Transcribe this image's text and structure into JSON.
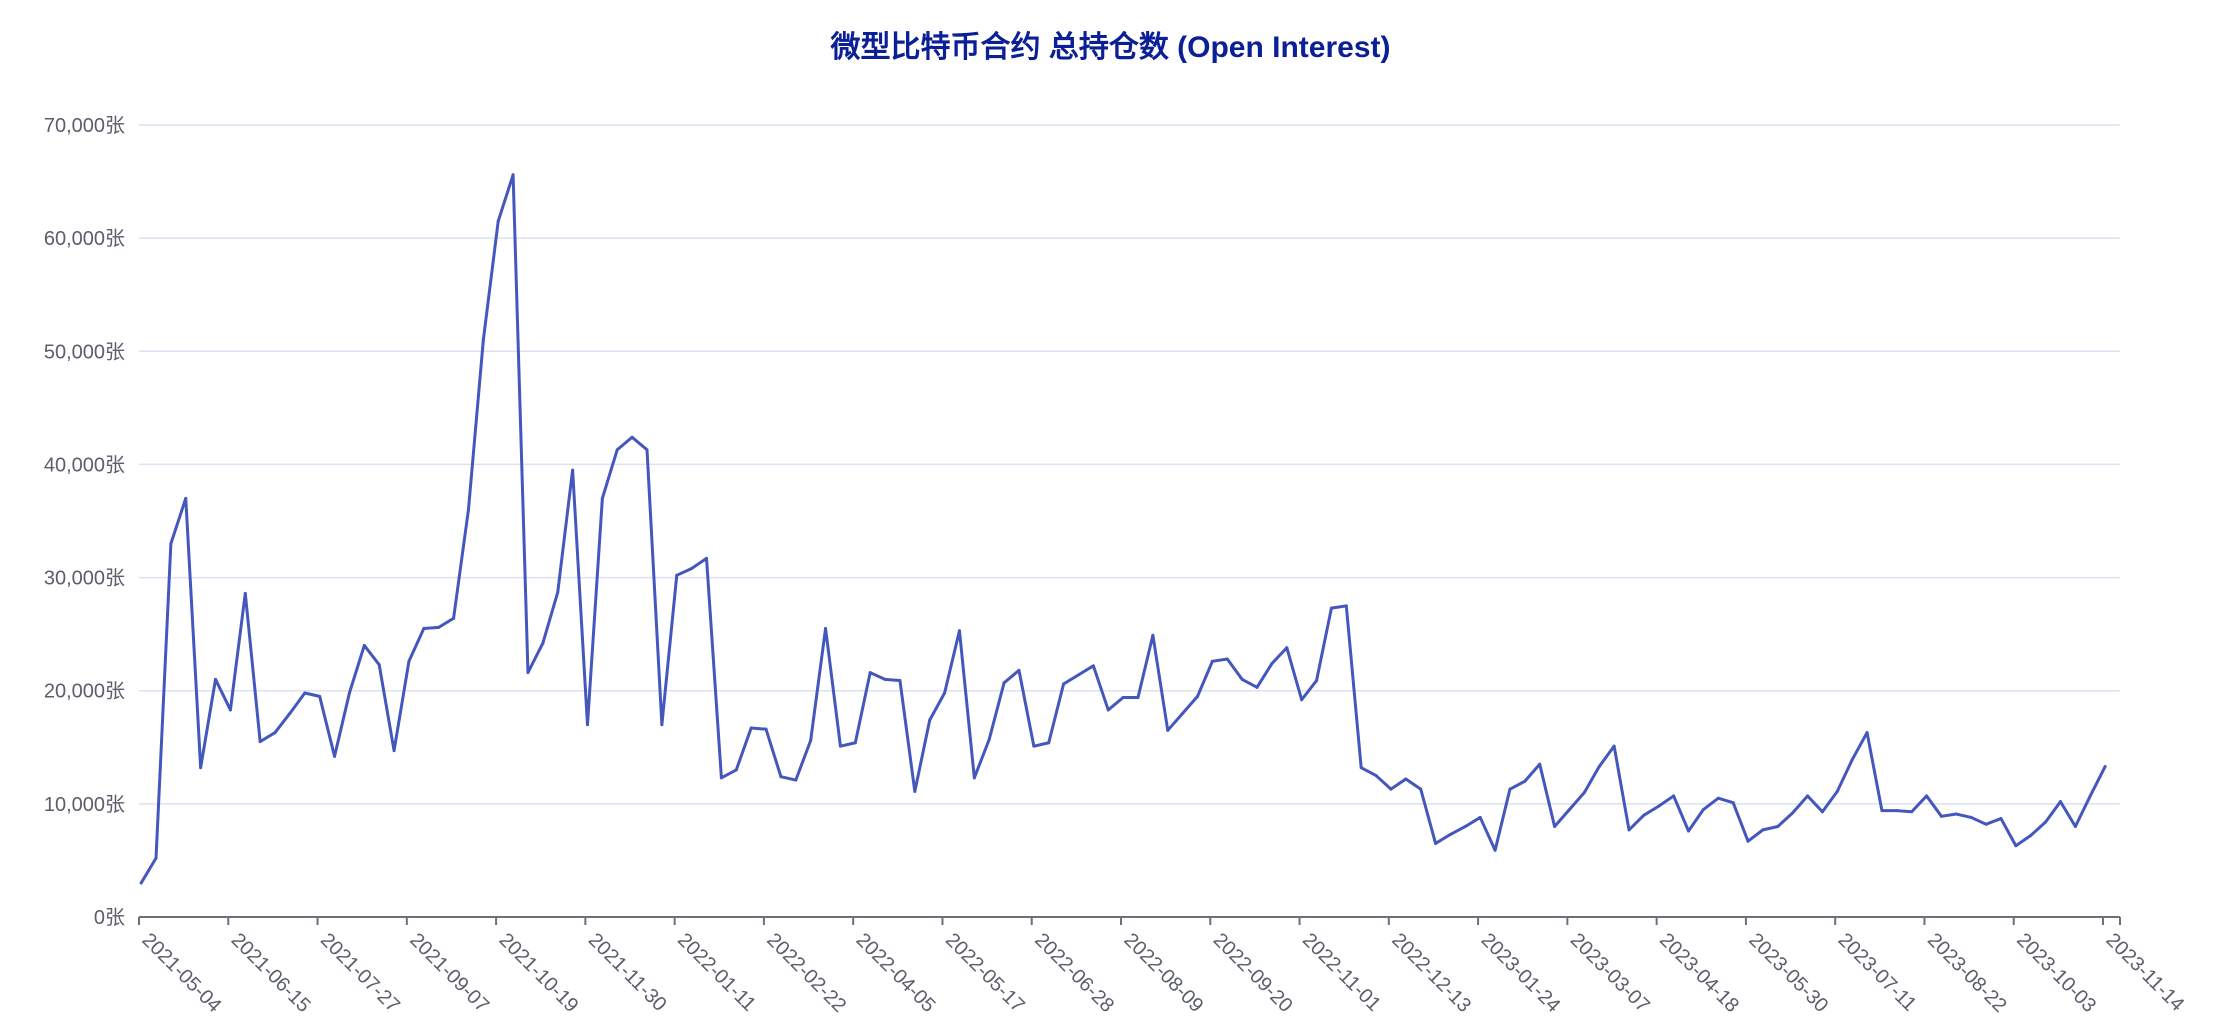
{
  "chart_data": {
    "type": "line",
    "title": "微型比特币合约 总持仓数 (Open Interest)",
    "xlabel": "",
    "ylabel": "",
    "ylim": [
      0,
      70000
    ],
    "y_unit_suffix": "张",
    "y_ticks": [
      "0张",
      "10,000张",
      "20,000张",
      "30,000张",
      "40,000张",
      "50,000张",
      "60,000张",
      "70,000张"
    ],
    "y_tick_values": [
      0,
      10000,
      20000,
      30000,
      40000,
      50000,
      60000,
      70000
    ],
    "x_ticks": [
      "2021-05-04",
      "2021-06-15",
      "2021-07-27",
      "2021-09-07",
      "2021-10-19",
      "2021-11-30",
      "2022-01-11",
      "2022-02-22",
      "2022-04-05",
      "2022-05-17",
      "2022-06-28",
      "2022-08-09",
      "2022-09-20",
      "2022-11-01",
      "2022-12-13",
      "2023-01-24",
      "2023-03-07",
      "2023-04-18",
      "2023-05-30",
      "2023-07-11",
      "2023-08-22",
      "2023-10-03",
      "2023-11-14"
    ],
    "grid": true,
    "line_color": "#4457bd",
    "grid_color": "#dde1f1",
    "title_color": "#0b1f96",
    "x": [
      "2021-05-05",
      "2021-05-12",
      "2021-05-19",
      "2021-05-26",
      "2021-06-02",
      "2021-06-09",
      "2021-06-16",
      "2021-06-23",
      "2021-06-30",
      "2021-07-07",
      "2021-07-14",
      "2021-07-21",
      "2021-07-28",
      "2021-08-04",
      "2021-08-11",
      "2021-08-18",
      "2021-08-25",
      "2021-09-01",
      "2021-09-08",
      "2021-09-15",
      "2021-09-22",
      "2021-09-29",
      "2021-10-06",
      "2021-10-13",
      "2021-10-20",
      "2021-10-27",
      "2021-11-03",
      "2021-11-10",
      "2021-11-17",
      "2021-11-24",
      "2021-12-01",
      "2021-12-08",
      "2021-12-15",
      "2021-12-22",
      "2021-12-29",
      "2022-01-05",
      "2022-01-12",
      "2022-01-19",
      "2022-01-26",
      "2022-02-02",
      "2022-02-09",
      "2022-02-16",
      "2022-02-23",
      "2022-03-02",
      "2022-03-09",
      "2022-03-16",
      "2022-03-23",
      "2022-03-30",
      "2022-04-06",
      "2022-04-13",
      "2022-04-20",
      "2022-04-27",
      "2022-05-04",
      "2022-05-11",
      "2022-05-18",
      "2022-05-25",
      "2022-06-01",
      "2022-06-08",
      "2022-06-15",
      "2022-06-22",
      "2022-06-29",
      "2022-07-06",
      "2022-07-13",
      "2022-07-20",
      "2022-07-27",
      "2022-08-03",
      "2022-08-10",
      "2022-08-17",
      "2022-08-24",
      "2022-08-31",
      "2022-09-07",
      "2022-09-14",
      "2022-09-21",
      "2022-09-28",
      "2022-10-05",
      "2022-10-12",
      "2022-10-19",
      "2022-10-26",
      "2022-11-02",
      "2022-11-09",
      "2022-11-16",
      "2022-11-23",
      "2022-11-30",
      "2022-12-07",
      "2022-12-14",
      "2022-12-21",
      "2022-12-28",
      "2023-01-04",
      "2023-01-11",
      "2023-01-18",
      "2023-01-25",
      "2023-02-01",
      "2023-02-08",
      "2023-02-15",
      "2023-02-22",
      "2023-03-01",
      "2023-03-08",
      "2023-03-15",
      "2023-03-22",
      "2023-03-29",
      "2023-04-05",
      "2023-04-12",
      "2023-04-19",
      "2023-04-26",
      "2023-05-03",
      "2023-05-10",
      "2023-05-17",
      "2023-05-24",
      "2023-05-31",
      "2023-06-07",
      "2023-06-14",
      "2023-06-21",
      "2023-06-28",
      "2023-07-05",
      "2023-07-12",
      "2023-07-19",
      "2023-07-26",
      "2023-08-02",
      "2023-08-09",
      "2023-08-16",
      "2023-08-23",
      "2023-08-30",
      "2023-09-06",
      "2023-09-13",
      "2023-09-20",
      "2023-09-27",
      "2023-10-04",
      "2023-10-11",
      "2023-10-18",
      "2023-10-25",
      "2023-11-01",
      "2023-11-08",
      "2023-11-15"
    ],
    "values": [
      3000,
      5200,
      33000,
      37000,
      13200,
      21000,
      18300,
      28600,
      15500,
      16300,
      18000,
      19800,
      19500,
      14200,
      19800,
      24000,
      22300,
      14700,
      22600,
      25500,
      25600,
      26400,
      36000,
      51000,
      61500,
      65600,
      21600,
      24200,
      28700,
      39500,
      17000,
      37000,
      41300,
      42400,
      41300,
      17000,
      30200,
      30800,
      31700,
      12300,
      13000,
      16700,
      16600,
      12400,
      12100,
      15600,
      25500,
      15100,
      15400,
      21600,
      21000,
      20900,
      11100,
      17400,
      19800,
      25300,
      12300,
      15700,
      20700,
      21800,
      15100,
      15400,
      20600,
      21400,
      22200,
      18300,
      19400,
      19400,
      24900,
      16500,
      18000,
      19500,
      22600,
      22800,
      21000,
      20300,
      22400,
      23800,
      19200,
      20900,
      27300,
      27500,
      13200,
      12500,
      11300,
      12200,
      11300,
      6500,
      7300,
      8000,
      8800,
      5900,
      11300,
      12000,
      13500,
      8000,
      9500,
      11000,
      13300,
      15100,
      7700,
      9000,
      9800,
      10700,
      7600,
      9500,
      10500,
      10100,
      6700,
      7700,
      8000,
      9200,
      10700,
      9300,
      11100,
      13900,
      16300,
      9400,
      9400,
      9300,
      10700,
      8900,
      9100,
      8800,
      8200,
      8700,
      6300,
      7200,
      8400,
      10200,
      8000,
      10700,
      13300
    ]
  }
}
